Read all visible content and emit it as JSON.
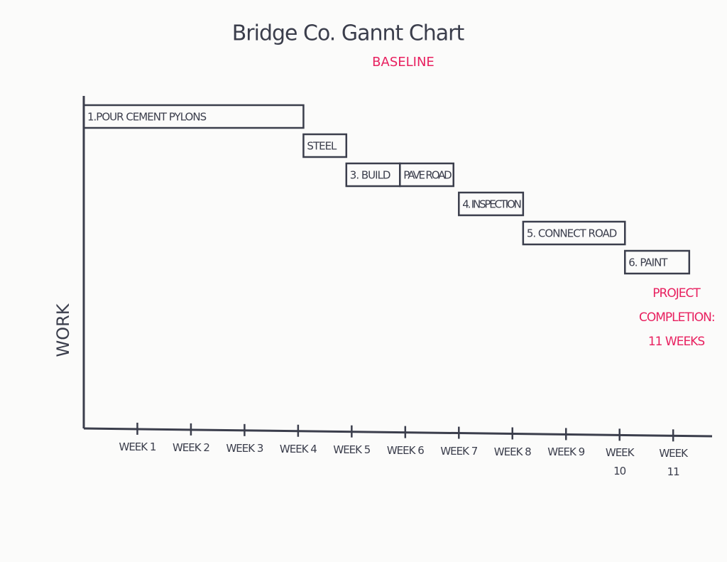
{
  "chart_data": {
    "type": "gantt",
    "title": "Bridge Co. Gannt Chart",
    "subtitle": "BASELINE",
    "y_label": "WORK",
    "annotation": [
      "PROJECT",
      "COMPLETION:",
      "11 WEEKS"
    ],
    "xlim": [
      0,
      11.7
    ],
    "xticks": [
      {
        "value": 1,
        "label": "WEEK 1"
      },
      {
        "value": 2,
        "label": "WEEK 2"
      },
      {
        "value": 3,
        "label": "WEEK 3"
      },
      {
        "value": 4,
        "label": "WEEK 4"
      },
      {
        "value": 5,
        "label": "WEEK 5"
      },
      {
        "value": 6,
        "label": "WEEK 6"
      },
      {
        "value": 7,
        "label": "WEEK 7"
      },
      {
        "value": 8,
        "label": "WEEK 8"
      },
      {
        "value": 9,
        "label": "WEEK 9"
      },
      {
        "value": 10,
        "label": "WEEK 10"
      },
      {
        "value": 11,
        "label": "WEEK 11"
      }
    ],
    "rows": [
      [
        {
          "name": "1.POUR CEMENT PYLONS",
          "start": 0,
          "end": 4.1
        }
      ],
      [
        {
          "name": "STEEL",
          "start": 4.1,
          "end": 4.9
        }
      ],
      [
        {
          "name": "3. BUILD",
          "start": 4.9,
          "end": 5.9
        },
        {
          "name": "PAVE ROAD",
          "start": 5.9,
          "end": 6.9
        }
      ],
      [
        {
          "name": "4. INSPECTION",
          "start": 7,
          "end": 8.2
        }
      ],
      [
        {
          "name": "5. CONNECT ROAD",
          "start": 8.2,
          "end": 10.1
        }
      ],
      [
        {
          "name": "6. PAINT",
          "start": 10.1,
          "end": 11.3
        }
      ]
    ],
    "color": "#3b3e4c",
    "accent_color": "#e8205f"
  }
}
